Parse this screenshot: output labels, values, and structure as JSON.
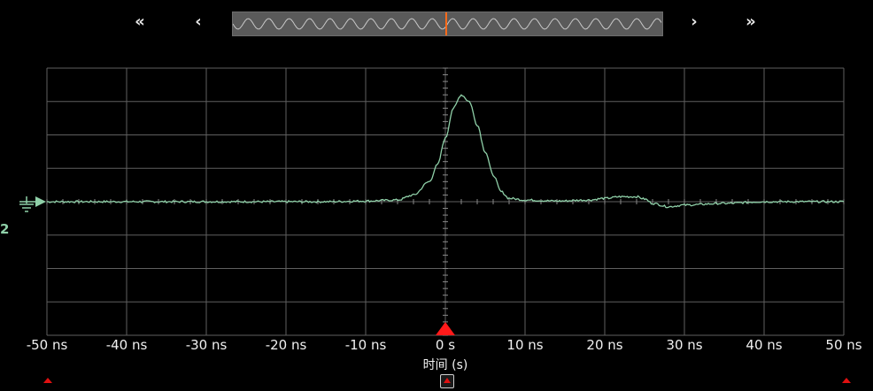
{
  "navigation": {
    "first_label": "«",
    "prev_label": "‹",
    "next_label": "›",
    "last_label": "»"
  },
  "channel": {
    "label": "2",
    "color": "#8fd0a8"
  },
  "time_axis": {
    "title": "时间 (s)",
    "tick_labels": [
      "-50 ns",
      "-40 ns",
      "-30 ns",
      "-20 ns",
      "-10 ns",
      "0 s",
      "10 ns",
      "20 ns",
      "30 ns",
      "40 ns",
      "50 ns"
    ]
  },
  "colors": {
    "grid": "#5f5f5f",
    "trace": "#8fd0a8",
    "trigger": "#ff1a1a",
    "overview_marker": "#ff6a1a"
  },
  "chart_data": {
    "type": "line",
    "title": "",
    "xlabel": "时间 (s)",
    "ylabel": "",
    "xlim": [
      -50,
      50
    ],
    "ylim": [
      -4,
      4
    ],
    "grid": true,
    "series": [
      {
        "x": [
          -50,
          -45,
          -40,
          -35,
          -30,
          -25,
          -20,
          -15,
          -10,
          -6,
          -4,
          -2,
          -1,
          0,
          1,
          2,
          3,
          4,
          5,
          6,
          7,
          8,
          10,
          14,
          18,
          20,
          22,
          24,
          25,
          26,
          28,
          30,
          35,
          40,
          45,
          50
        ],
        "y": [
          0,
          0,
          0,
          0,
          0,
          0,
          0,
          0,
          0.02,
          0.05,
          0.2,
          0.6,
          1.1,
          1.9,
          2.8,
          3.2,
          3.0,
          2.3,
          1.5,
          0.8,
          0.3,
          0.1,
          0.05,
          0.02,
          0.05,
          0.1,
          0.15,
          0.15,
          0.08,
          -0.05,
          -0.15,
          -0.1,
          -0.05,
          0,
          0,
          0
        ]
      }
    ]
  }
}
